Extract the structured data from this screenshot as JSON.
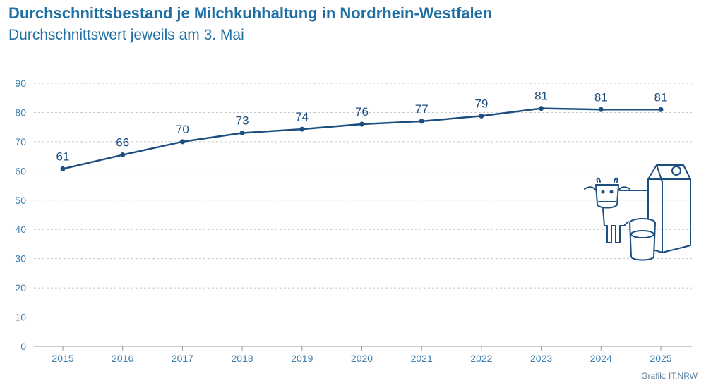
{
  "title": "Durchschnittsbestand je Milchkuhhaltung in Nordrhein-Westfalen",
  "subtitle": "Durchschnittswert jeweils am 3. Mai",
  "source": "Grafik: IT.NRW",
  "colors": {
    "title": "#1f6fa3",
    "line": "#1d4e80",
    "axis_text": "#3f7fae",
    "grid": "#c9c9c9",
    "icon": "#1d4e80"
  },
  "icon_name": "cow-milk-carton-glass-icon",
  "chart_data": {
    "type": "line",
    "title": "Durchschnittsbestand je Milchkuhhaltung in Nordrhein-Westfalen",
    "subtitle": "Durchschnittswert jeweils am 3. Mai",
    "x": [
      "2015",
      "2016",
      "2017",
      "2018",
      "2019",
      "2020",
      "2021",
      "2022",
      "2023",
      "2024",
      "2025"
    ],
    "series": [
      {
        "values": [
          60.7,
          65.5,
          70,
          73,
          74.3,
          76,
          77,
          78.8,
          81.4,
          81,
          81
        ],
        "labels": [
          "61",
          "66",
          "70",
          "73",
          "74",
          "76",
          "77",
          "79",
          "81",
          "81",
          "81"
        ]
      }
    ],
    "ylim": [
      0,
      90
    ],
    "yticks": [
      "0",
      "10",
      "20",
      "30",
      "40",
      "50",
      "60",
      "70",
      "80",
      "90"
    ],
    "grid": true,
    "xlabel": "",
    "ylabel": ""
  }
}
